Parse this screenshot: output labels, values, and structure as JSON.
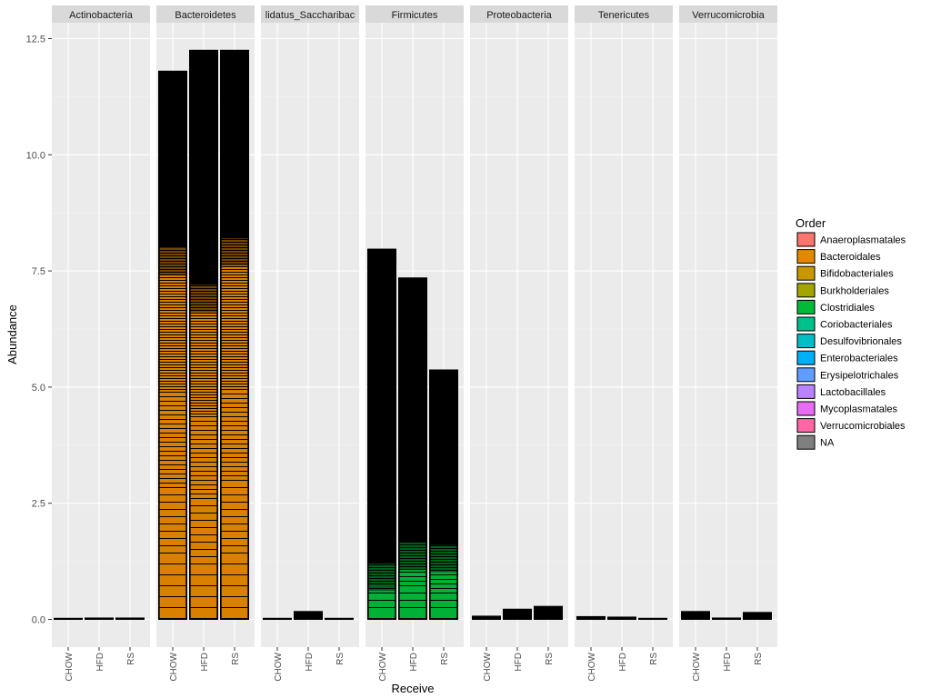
{
  "chart_data": {
    "type": "bar",
    "title": "",
    "xlabel": "Receive",
    "ylabel": "Abundance",
    "ylim": [
      0,
      13.1
    ],
    "y_ticks": [
      "0.0",
      "2.5",
      "5.0",
      "7.5",
      "10.0",
      "12.5"
    ],
    "y_tick_values": [
      0,
      2.5,
      5,
      7.5,
      10,
      12.5
    ],
    "categories": [
      "CHOW",
      "HFD",
      "RS"
    ],
    "facets": [
      {
        "name": "Actinobacteria",
        "label": "Actinobacteria",
        "values": [
          0.01,
          0.03,
          0.03
        ],
        "fill": "#000000"
      },
      {
        "name": "Bacteroidetes",
        "label": "Bacteroidetes",
        "values": [
          11.8,
          12.25,
          12.25
        ],
        "fill": "#E58700",
        "stripe_top": [
          8.0,
          7.2,
          8.2
        ]
      },
      {
        "name": "Candidatus_Saccharibacteria",
        "label": "lidatus_Saccharibac",
        "values": [
          0.01,
          0.17,
          0.01
        ],
        "fill": "#000000"
      },
      {
        "name": "Firmicutes",
        "label": "Firmicutes",
        "values": [
          7.97,
          7.35,
          5.37
        ],
        "fill": "#00BA38",
        "stripe_top": [
          1.2,
          1.65,
          1.6
        ]
      },
      {
        "name": "Proteobacteria",
        "label": "Proteobacteria",
        "values": [
          0.07,
          0.22,
          0.28
        ],
        "fill": "#000000"
      },
      {
        "name": "Tenericutes",
        "label": "Tenericutes",
        "values": [
          0.06,
          0.05,
          0.01
        ],
        "fill": "#000000"
      },
      {
        "name": "Verrucomicrobia",
        "label": "Verrucomicrobia",
        "values": [
          0.17,
          0.03,
          0.15
        ],
        "fill": "#000000"
      }
    ],
    "legend": {
      "title": "Order",
      "position": "right",
      "entries": [
        {
          "name": "Anaeroplasmatales",
          "color": "#F8766D"
        },
        {
          "name": "Bacteroidales",
          "color": "#E58700"
        },
        {
          "name": "Bifidobacteriales",
          "color": "#C99800"
        },
        {
          "name": "Burkholderiales",
          "color": "#A3A500"
        },
        {
          "name": "Clostridiales",
          "color": "#00BA38"
        },
        {
          "name": "Coriobacteriales",
          "color": "#00C08B"
        },
        {
          "name": "Desulfovibrionales",
          "color": "#00BFC4"
        },
        {
          "name": "Enterobacteriales",
          "color": "#00B0F6"
        },
        {
          "name": "Erysipelotrichales",
          "color": "#619CFF"
        },
        {
          "name": "Lactobacillales",
          "color": "#B983FF"
        },
        {
          "name": "Mycoplasmatales",
          "color": "#E76BF3"
        },
        {
          "name": "Verrucomicrobiales",
          "color": "#FF67A4"
        },
        {
          "name": "NA",
          "color": "#7F7F7F"
        }
      ]
    },
    "grid": true
  }
}
